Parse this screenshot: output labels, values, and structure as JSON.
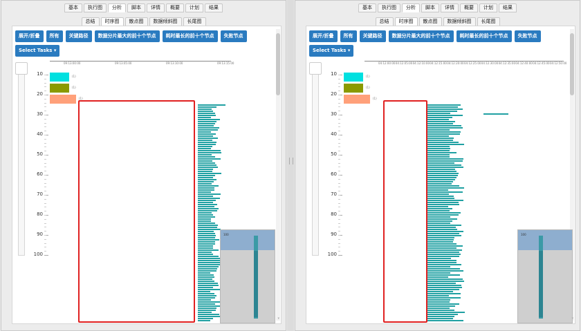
{
  "top_tabs": [
    "基本",
    "执行图",
    "分析",
    "脚本",
    "详情",
    "概要",
    "计划",
    "结果"
  ],
  "top_active": 2,
  "left": {
    "sub_tabs": [
      "总结",
      "时序图",
      "散点图",
      "数据倾斜图",
      "长尾图"
    ],
    "sub_active": 1,
    "x_ticks": [
      "09:13:00:00",
      "09:13:05:00",
      "09:13:10:00",
      "09:13:15:00"
    ],
    "minimap_label": "100"
  },
  "right": {
    "sub_tabs": [
      "总结",
      "时序图",
      "散点图",
      "数据倾斜图",
      "长尾图"
    ],
    "sub_active": 1,
    "x_ticks": [
      "04:12:00:00",
      "04:12:05:00",
      "04:12:10:00",
      "04:12:15:00",
      "04:12:20:00",
      "04:12:25:00",
      "04:12:30:00",
      "04:12:35:00",
      "04:12:40:00",
      "04:12:45:00",
      "04:12:50:00"
    ],
    "minimap_label": "100"
  },
  "buttons": [
    "展开/折叠",
    "所有",
    "关键路径",
    "数据分片最大的前十个节点",
    "耗时最长的前十个节点",
    "失败节点"
  ],
  "select_tasks": "Select Tasks ▾",
  "y_ticks": [
    "10",
    "20",
    "30",
    "40",
    "50",
    "60",
    "70",
    "80",
    "90",
    "100"
  ],
  "legend": [
    {
      "color": "#00e0e0",
      "label": "(1)"
    },
    {
      "color": "#8a9a00",
      "label": "(1)"
    },
    {
      "color": "#ffa07a",
      "label": "(1)"
    }
  ],
  "bar_color": "#1fa0a2",
  "highlight_color": "#e02020"
}
